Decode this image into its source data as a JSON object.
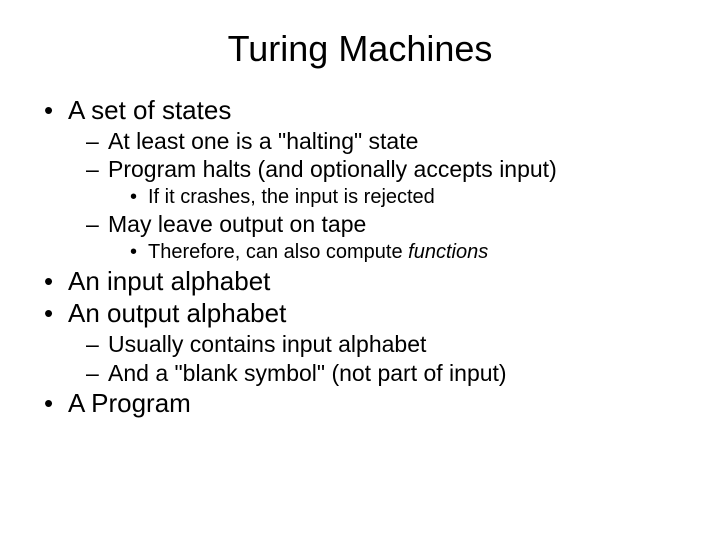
{
  "title": "Turing Machines",
  "bullets": {
    "b1": "A set of states",
    "b1_1": "At least one is a \"halting\" state",
    "b1_2": "Program halts (and optionally accepts input)",
    "b1_2_1": "If it crashes, the input is rejected",
    "b1_3": "May leave output on tape",
    "b1_3_1_pre": "Therefore, can also compute ",
    "b1_3_1_em": "functions",
    "b2": "An input alphabet",
    "b3": "An output alphabet",
    "b3_1": "Usually contains input alphabet",
    "b3_2": "And a \"blank symbol\" (not part of input)",
    "b4": "A Program"
  },
  "style": {
    "background_color": "#ffffff",
    "text_color": "#000000",
    "title_fontsize": 36,
    "level1_fontsize": 26,
    "level2_fontsize": 23,
    "level3_fontsize": 20,
    "font_family": "Arial"
  }
}
